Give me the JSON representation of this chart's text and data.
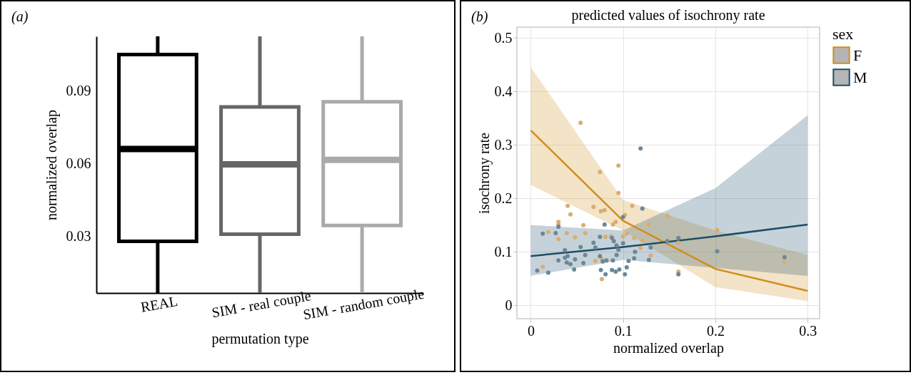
{
  "chart_data": [
    {
      "type": "box",
      "annotations": [
        "(a)"
      ],
      "xlabel": "permutation type",
      "ylabel": "normalized overlap",
      "categories": [
        "REAL",
        "SIM - real couple",
        "SIM - random couple"
      ],
      "colors": [
        "#000000",
        "#666666",
        "#aaaaaa"
      ],
      "boxes": [
        {
          "low": 0.0066,
          "q1": 0.0279,
          "median": 0.066,
          "q3": 0.105,
          "high": 0.1125
        },
        {
          "low": 0.0066,
          "q1": 0.0309,
          "median": 0.0597,
          "q3": 0.0834,
          "high": 0.1125
        },
        {
          "low": 0.0066,
          "q1": 0.0345,
          "median": 0.0615,
          "q3": 0.0855,
          "high": 0.1125
        }
      ],
      "ylim": [
        0.0066,
        0.1125
      ],
      "yticks": [
        0.03,
        0.06,
        0.09
      ],
      "grid": false
    },
    {
      "type": "line",
      "title": "predicted values of isochrony rate",
      "annotations": [
        "(b)"
      ],
      "xlabel": "normalized overlap",
      "ylabel": "isochrony rate",
      "legend_title": "sex",
      "legend": "right",
      "grid": true,
      "xlim": [
        -0.015,
        0.313
      ],
      "xticks": [
        0,
        0.1,
        0.2,
        0.3
      ],
      "ylim": [
        -0.025,
        0.52
      ],
      "yticks": [
        0,
        0.1,
        0.2,
        0.3,
        0.4,
        0.5
      ],
      "series": [
        {
          "type": "scatter",
          "color": "#d9ad72",
          "x": [
            0.054,
            0.095,
            0.075,
            0.095,
            0.068,
            0.04,
            0.043,
            0.076,
            0.08,
            0.092,
            0.089,
            0.102,
            0.11,
            0.03,
            0.03,
            0.057,
            0.019,
            0.039,
            0.059,
            0.03,
            0.048,
            0.081,
            0.087,
            0.1,
            0.104,
            0.112,
            0.128,
            0.148,
            0.121,
            0.119,
            0.013,
            0.07,
            0.077,
            0.13,
            0.077,
            0.16,
            0.16,
            0.202,
            0.275
          ],
          "values": [
            0.341,
            0.261,
            0.249,
            0.21,
            0.184,
            0.186,
            0.17,
            0.176,
            0.178,
            0.156,
            0.151,
            0.169,
            0.186,
            0.156,
            0.151,
            0.15,
            0.137,
            0.135,
            0.135,
            0.124,
            0.127,
            0.128,
            0.129,
            0.129,
            0.134,
            0.126,
            0.151,
            0.168,
            0.121,
            0.107,
            0.072,
            0.083,
            0.086,
            0.093,
            0.049,
            0.063,
            0.117,
            0.141,
            0.081
          ]
        },
        {
          "type": "scatter",
          "color": "#6c8797",
          "x": [
            0.119,
            0.1,
            0.121,
            0.08,
            0.03,
            0.013,
            0.027,
            0.075,
            0.09,
            0.088,
            0.068,
            0.1,
            0.093,
            0.054,
            0.07,
            0.13,
            0.113,
            0.095,
            0.037,
            0.04,
            0.059,
            0.075,
            0.093,
            0.037,
            0.048,
            0.03,
            0.082,
            0.089,
            0.128,
            0.112,
            0.106,
            0.039,
            0.057,
            0.078,
            0.043,
            0.047,
            0.076,
            0.088,
            0.096,
            0.092,
            0.007,
            0.019,
            0.081,
            0.102,
            0.104,
            0.16,
            0.16,
            0.148,
            0.202,
            0.275
          ],
          "values": [
            0.293,
            0.165,
            0.181,
            0.151,
            0.147,
            0.134,
            0.135,
            0.128,
            0.12,
            0.126,
            0.117,
            0.116,
            0.112,
            0.109,
            0.108,
            0.108,
            0.1,
            0.104,
            0.103,
            0.092,
            0.094,
            0.092,
            0.094,
            0.089,
            0.086,
            0.084,
            0.084,
            0.084,
            0.085,
            0.088,
            0.083,
            0.08,
            0.079,
            0.082,
            0.077,
            0.067,
            0.066,
            0.066,
            0.067,
            0.063,
            0.065,
            0.061,
            0.058,
            0.058,
            0.071,
            0.058,
            0.126,
            0.12,
            0.101,
            0.09
          ]
        },
        {
          "type": "line",
          "name": "F",
          "color": "#d08e1e",
          "x": [
            0,
            0.1,
            0.2,
            0.3
          ],
          "values": [
            0.327,
            0.158,
            0.068,
            0.027
          ],
          "lower": [
            0.225,
            0.14,
            0.034,
            0.008
          ],
          "upper": [
            0.445,
            0.197,
            0.14,
            0.094
          ]
        },
        {
          "type": "line",
          "name": "M",
          "color": "#1d4d68",
          "x": [
            0,
            0.1,
            0.2,
            0.3
          ],
          "values": [
            0.092,
            0.109,
            0.129,
            0.151
          ],
          "lower": [
            0.055,
            0.085,
            0.07,
            0.055
          ],
          "upper": [
            0.15,
            0.14,
            0.219,
            0.355
          ]
        }
      ]
    }
  ]
}
